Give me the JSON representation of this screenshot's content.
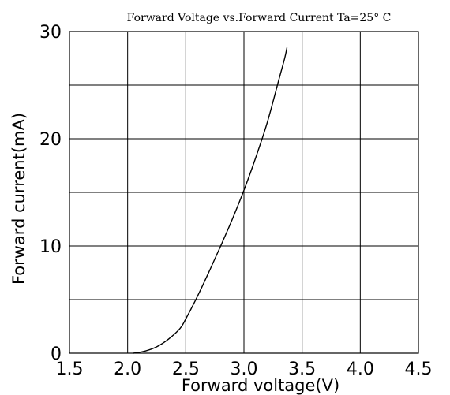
{
  "chart_data": {
    "type": "line",
    "title": "Forward Voltage vs.Forward Current Ta=25° C",
    "xlabel": "Forward voltage(V)",
    "ylabel": "Forward current(mA)",
    "xlim": [
      1.5,
      4.5
    ],
    "ylim": [
      0,
      30
    ],
    "x_ticks": [
      "1.5",
      "2.0",
      "2.5",
      "3.0",
      "3.5",
      "4.0",
      "4.5"
    ],
    "y_ticks": [
      "0",
      "10",
      "20",
      "30"
    ],
    "grid": true,
    "series": [
      {
        "x": [
          2.05,
          2.15,
          2.25,
          2.35,
          2.45,
          2.5,
          2.6,
          2.7,
          2.8,
          2.9,
          3.0,
          3.1,
          3.2,
          3.3,
          3.35,
          3.37
        ],
        "y": [
          0,
          0.2,
          0.6,
          1.3,
          2.3,
          3.2,
          5.3,
          7.6,
          10.0,
          12.5,
          15.2,
          18.2,
          21.5,
          25.5,
          27.5,
          28.5
        ]
      }
    ]
  }
}
